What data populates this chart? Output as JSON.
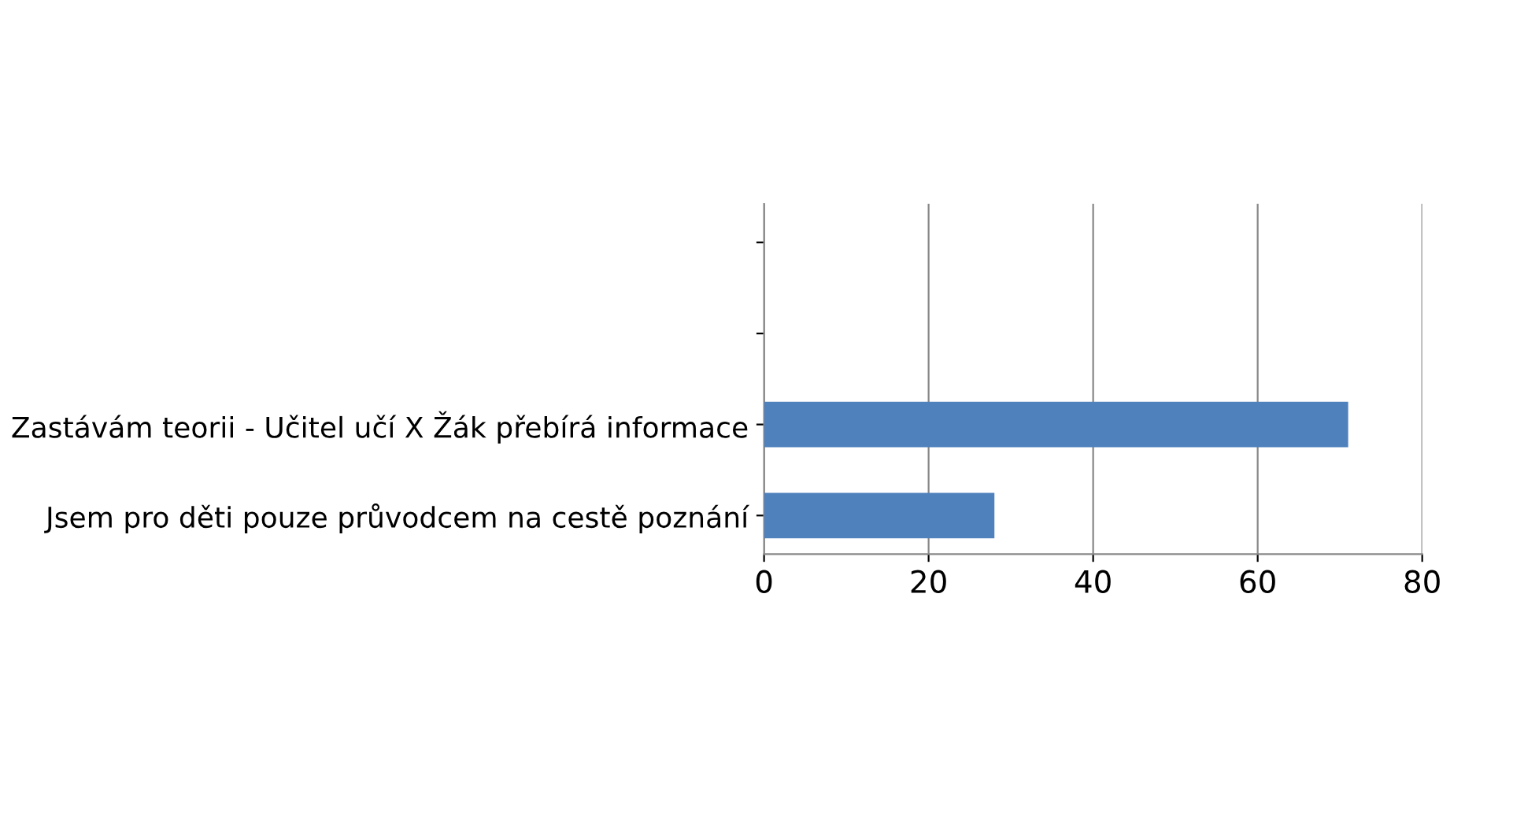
{
  "chart_data": {
    "type": "bar",
    "orientation": "horizontal",
    "categories": [
      null,
      null,
      "Zastávám teorii - Učitel učí X Žák přebírá informace",
      "Jsem pro děti pouze průvodcem na cestě poznání"
    ],
    "values": [
      null,
      null,
      71,
      28
    ],
    "color": "#4f81bd",
    "xlim": [
      0,
      80
    ],
    "xticks": [
      0,
      20,
      40,
      60,
      80
    ],
    "grid": "x",
    "legend": false
  }
}
